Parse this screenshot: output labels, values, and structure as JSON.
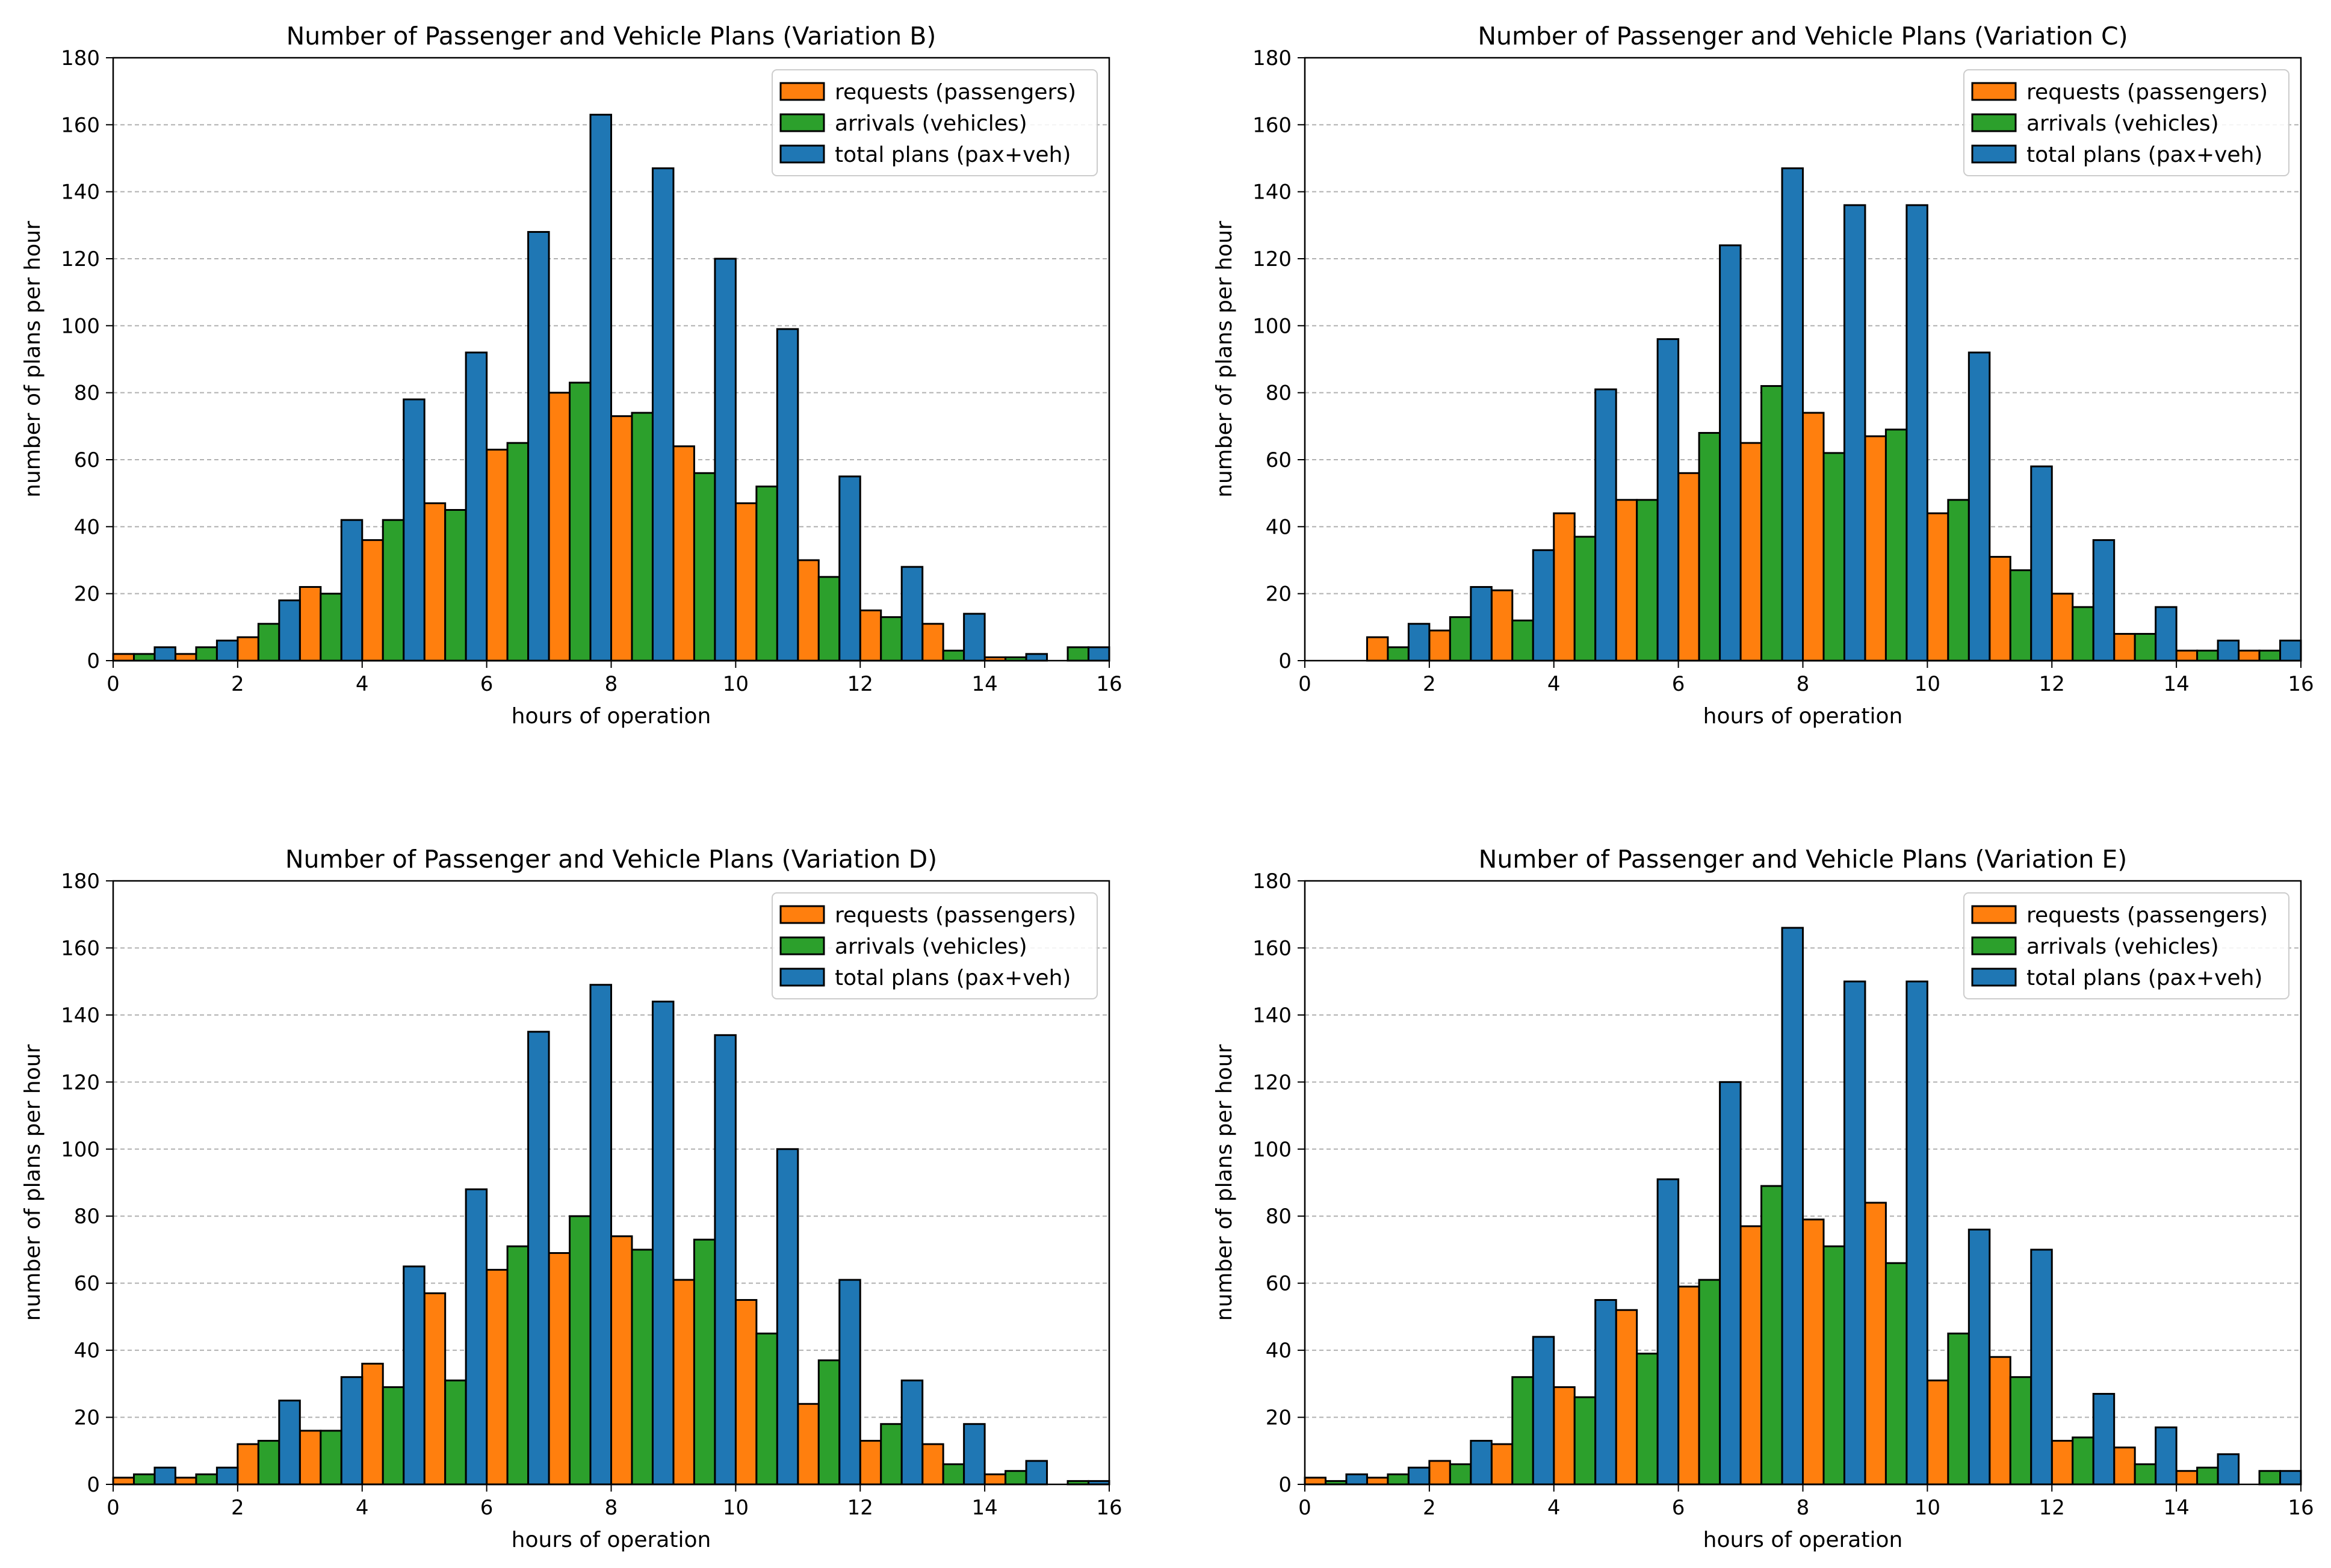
{
  "colors": {
    "requests": "#ff7f0e",
    "arrivals": "#2ca02c",
    "total": "#1f77b4",
    "grid": "#b0b0b0",
    "legend_edge": "#cccccc"
  },
  "chart_data": [
    {
      "type": "bar",
      "title": "Number of Passenger and Vehicle Plans (Variation B)",
      "xlabel": "hours of operation",
      "ylabel": "number of plans per hour",
      "xlim": [
        0,
        16
      ],
      "ylim": [
        0,
        180
      ],
      "xticks": [
        0,
        2,
        4,
        6,
        8,
        10,
        12,
        14,
        16
      ],
      "yticks": [
        0,
        20,
        40,
        60,
        80,
        100,
        120,
        140,
        160,
        180
      ],
      "grid": "horizontal dashed",
      "legend_position": "top-right",
      "categories": [
        0,
        1,
        2,
        3,
        4,
        5,
        6,
        7,
        8,
        9,
        10,
        11,
        12,
        13,
        14,
        15
      ],
      "series": [
        {
          "name": "requests (passengers)",
          "color_key": "requests",
          "values": [
            2,
            2,
            7,
            22,
            36,
            47,
            63,
            80,
            73,
            64,
            47,
            30,
            15,
            11,
            1,
            0
          ]
        },
        {
          "name": "arrivals (vehicles)",
          "color_key": "arrivals",
          "values": [
            2,
            4,
            11,
            20,
            42,
            45,
            65,
            83,
            74,
            56,
            52,
            25,
            13,
            3,
            1,
            4
          ]
        },
        {
          "name": "total plans (pax+veh)",
          "color_key": "total",
          "values": [
            4,
            6,
            18,
            42,
            78,
            92,
            128,
            163,
            147,
            120,
            99,
            55,
            28,
            14,
            2,
            4
          ]
        }
      ]
    },
    {
      "type": "bar",
      "title": "Number of Passenger and Vehicle Plans (Variation C)",
      "xlabel": "hours of operation",
      "ylabel": "number of plans per hour",
      "xlim": [
        0,
        16
      ],
      "ylim": [
        0,
        180
      ],
      "xticks": [
        0,
        2,
        4,
        6,
        8,
        10,
        12,
        14,
        16
      ],
      "yticks": [
        0,
        20,
        40,
        60,
        80,
        100,
        120,
        140,
        160,
        180
      ],
      "grid": "horizontal dashed",
      "legend_position": "top-right",
      "categories": [
        0,
        1,
        2,
        3,
        4,
        5,
        6,
        7,
        8,
        9,
        10,
        11,
        12,
        13,
        14,
        15
      ],
      "series": [
        {
          "name": "requests (passengers)",
          "color_key": "requests",
          "values": [
            0,
            7,
            9,
            21,
            44,
            48,
            56,
            65,
            74,
            67,
            44,
            31,
            20,
            8,
            3,
            3
          ]
        },
        {
          "name": "arrivals (vehicles)",
          "color_key": "arrivals",
          "values": [
            0,
            4,
            13,
            12,
            37,
            48,
            68,
            82,
            62,
            69,
            48,
            27,
            16,
            8,
            3,
            3
          ]
        },
        {
          "name": "total plans (pax+veh)",
          "color_key": "total",
          "values": [
            0,
            11,
            22,
            33,
            81,
            96,
            124,
            147,
            136,
            136,
            92,
            58,
            36,
            16,
            6,
            6
          ]
        }
      ]
    },
    {
      "type": "bar",
      "title": "Number of Passenger and Vehicle Plans (Variation D)",
      "xlabel": "hours of operation",
      "ylabel": "number of plans per hour",
      "xlim": [
        0,
        16
      ],
      "ylim": [
        0,
        180
      ],
      "xticks": [
        0,
        2,
        4,
        6,
        8,
        10,
        12,
        14,
        16
      ],
      "yticks": [
        0,
        20,
        40,
        60,
        80,
        100,
        120,
        140,
        160,
        180
      ],
      "grid": "horizontal dashed",
      "legend_position": "top-right",
      "categories": [
        0,
        1,
        2,
        3,
        4,
        5,
        6,
        7,
        8,
        9,
        10,
        11,
        12,
        13,
        14,
        15
      ],
      "series": [
        {
          "name": "requests (passengers)",
          "color_key": "requests",
          "values": [
            2,
            2,
            12,
            16,
            36,
            57,
            64,
            69,
            74,
            61,
            55,
            24,
            13,
            12,
            3,
            0
          ]
        },
        {
          "name": "arrivals (vehicles)",
          "color_key": "arrivals",
          "values": [
            3,
            3,
            13,
            16,
            29,
            31,
            71,
            80,
            70,
            73,
            45,
            37,
            18,
            6,
            4,
            1
          ]
        },
        {
          "name": "total plans (pax+veh)",
          "color_key": "total",
          "values": [
            5,
            5,
            25,
            32,
            65,
            88,
            135,
            149,
            144,
            134,
            100,
            61,
            31,
            18,
            7,
            1
          ]
        }
      ]
    },
    {
      "type": "bar",
      "title": "Number of Passenger and Vehicle Plans (Variation E)",
      "xlabel": "hours of operation",
      "ylabel": "number of plans per hour",
      "xlim": [
        0,
        16
      ],
      "ylim": [
        0,
        180
      ],
      "xticks": [
        0,
        2,
        4,
        6,
        8,
        10,
        12,
        14,
        16
      ],
      "yticks": [
        0,
        20,
        40,
        60,
        80,
        100,
        120,
        140,
        160,
        180
      ],
      "grid": "horizontal dashed",
      "legend_position": "top-right",
      "categories": [
        0,
        1,
        2,
        3,
        4,
        5,
        6,
        7,
        8,
        9,
        10,
        11,
        12,
        13,
        14,
        15
      ],
      "series": [
        {
          "name": "requests (passengers)",
          "color_key": "requests",
          "values": [
            2,
            2,
            7,
            12,
            29,
            52,
            59,
            77,
            79,
            84,
            31,
            38,
            13,
            11,
            4,
            0
          ]
        },
        {
          "name": "arrivals (vehicles)",
          "color_key": "arrivals",
          "values": [
            1,
            3,
            6,
            32,
            26,
            39,
            61,
            89,
            71,
            66,
            45,
            32,
            14,
            6,
            5,
            4
          ]
        },
        {
          "name": "total plans (pax+veh)",
          "color_key": "total",
          "values": [
            3,
            5,
            13,
            44,
            55,
            91,
            120,
            166,
            150,
            150,
            76,
            70,
            27,
            17,
            9,
            4
          ]
        }
      ]
    }
  ]
}
